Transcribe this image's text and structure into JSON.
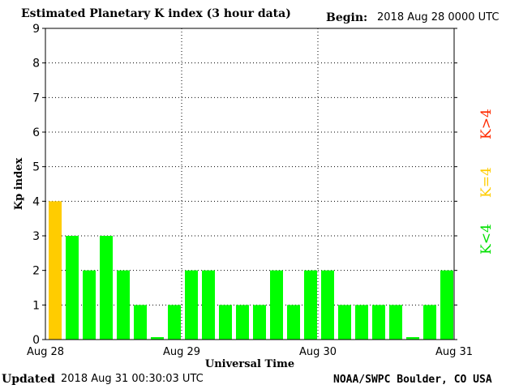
{
  "header": {
    "title": "Estimated Planetary K index (3 hour data)",
    "begin_label": "Begin:",
    "begin_value": "2018 Aug 28 0000 UTC"
  },
  "footer": {
    "updated_label": "Updated",
    "updated_value": "2018 Aug 31 00:30:03 UTC",
    "credit": "NOAA/SWPC Boulder, CO USA"
  },
  "legend": {
    "high": "K>4",
    "equal": "K=4",
    "low": "K<4"
  },
  "colors": {
    "high": "#ff2a00",
    "equal": "#ffcc00",
    "low": "#00ff00"
  },
  "chart_data": {
    "type": "bar",
    "title": "Estimated Planetary K index (3 hour data)",
    "xlabel": "Universal Time",
    "ylabel": "Kp index",
    "ylim": [
      0,
      9
    ],
    "yticks": [
      "0",
      "1",
      "2",
      "3",
      "4",
      "5",
      "6",
      "7",
      "8",
      "9"
    ],
    "xtick_labels": [
      "Aug 28",
      "Aug 29",
      "Aug 30",
      "Aug 31"
    ],
    "grid": true,
    "interval_hours": 3,
    "values": [
      4,
      3,
      2,
      3,
      2,
      1,
      0,
      1,
      2,
      2,
      1,
      1,
      1,
      2,
      1,
      2,
      2,
      1,
      1,
      1,
      1,
      0,
      1,
      2
    ]
  }
}
